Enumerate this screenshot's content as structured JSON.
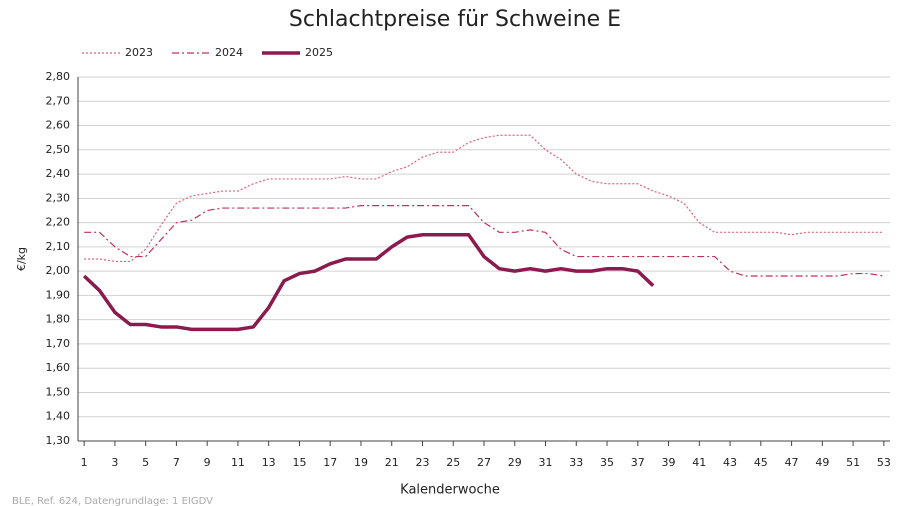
{
  "chart_data": {
    "type": "line",
    "title": "Schlachtpreise für Schweine E",
    "y_label": "€/kg",
    "x_label": "Kalenderwoche",
    "source": "BLE, Ref. 624, Datengrundlage: 1 EIGDV",
    "x": [
      1,
      2,
      3,
      4,
      5,
      6,
      7,
      8,
      9,
      10,
      11,
      12,
      13,
      14,
      15,
      16,
      17,
      18,
      19,
      20,
      21,
      22,
      23,
      24,
      25,
      26,
      27,
      28,
      29,
      30,
      31,
      32,
      33,
      34,
      35,
      36,
      37,
      38,
      39,
      40,
      41,
      42,
      43,
      44,
      45,
      46,
      47,
      48,
      49,
      50,
      51,
      52,
      53
    ],
    "series": [
      {
        "name": "2023",
        "color": "#e0607a",
        "dash": "dotted",
        "width": 1.2,
        "values": [
          2.05,
          2.05,
          2.04,
          2.04,
          2.09,
          2.19,
          2.28,
          2.31,
          2.32,
          2.33,
          2.33,
          2.36,
          2.38,
          2.38,
          2.38,
          2.38,
          2.38,
          2.39,
          2.38,
          2.38,
          2.41,
          2.43,
          2.47,
          2.49,
          2.49,
          2.53,
          2.55,
          2.56,
          2.56,
          2.56,
          2.5,
          2.46,
          2.4,
          2.37,
          2.36,
          2.36,
          2.36,
          2.33,
          2.31,
          2.28,
          2.2,
          2.16,
          2.16,
          2.16,
          2.16,
          2.16,
          2.15,
          2.16,
          2.16,
          2.16,
          2.16,
          2.16,
          2.16
        ]
      },
      {
        "name": "2024",
        "color": "#c0325a",
        "dash": "dashdot",
        "width": 1.2,
        "values": [
          2.16,
          2.16,
          2.1,
          2.06,
          2.06,
          2.13,
          2.2,
          2.21,
          2.25,
          2.26,
          2.26,
          2.26,
          2.26,
          2.26,
          2.26,
          2.26,
          2.26,
          2.26,
          2.27,
          2.27,
          2.27,
          2.27,
          2.27,
          2.27,
          2.27,
          2.27,
          2.2,
          2.16,
          2.16,
          2.17,
          2.16,
          2.09,
          2.06,
          2.06,
          2.06,
          2.06,
          2.06,
          2.06,
          2.06,
          2.06,
          2.06,
          2.06,
          2.0,
          1.98,
          1.98,
          1.98,
          1.98,
          1.98,
          1.98,
          1.98,
          1.99,
          1.99,
          1.98
        ]
      },
      {
        "name": "2025",
        "color": "#8b1a4f",
        "dash": "solid",
        "width": 3.5,
        "values": [
          1.98,
          1.92,
          1.83,
          1.78,
          1.78,
          1.77,
          1.77,
          1.76,
          1.76,
          1.76,
          1.76,
          1.77,
          1.85,
          1.96,
          1.99,
          2.0,
          2.03,
          2.05,
          2.05,
          2.05,
          2.1,
          2.14,
          2.15,
          2.15,
          2.15,
          2.15,
          2.06,
          2.01,
          2.0,
          2.01,
          2.0,
          2.01,
          2.0,
          2.0,
          2.01,
          2.01,
          2.0,
          1.94,
          null,
          null,
          null,
          null,
          null,
          null,
          null,
          null,
          null,
          null,
          null,
          null,
          null,
          null,
          null
        ]
      }
    ],
    "xlim": [
      0.6,
      53.4
    ],
    "xticks": [
      1,
      3,
      5,
      7,
      9,
      11,
      13,
      15,
      17,
      19,
      21,
      23,
      25,
      27,
      29,
      31,
      33,
      35,
      37,
      39,
      41,
      43,
      45,
      47,
      49,
      51,
      53
    ],
    "ylim": [
      1.3,
      2.8
    ],
    "yticks": [
      {
        "value": 1.3,
        "label": "1,30"
      },
      {
        "value": 1.4,
        "label": "1,40"
      },
      {
        "value": 1.5,
        "label": "1,50"
      },
      {
        "value": 1.6,
        "label": "1,60"
      },
      {
        "value": 1.7,
        "label": "1,70"
      },
      {
        "value": 1.8,
        "label": "1,80"
      },
      {
        "value": 1.9,
        "label": "1,90"
      },
      {
        "value": 2.0,
        "label": "2,00"
      },
      {
        "value": 2.1,
        "label": "2,10"
      },
      {
        "value": 2.2,
        "label": "2,20"
      },
      {
        "value": 2.3,
        "label": "2,30"
      },
      {
        "value": 2.4,
        "label": "2,40"
      },
      {
        "value": 2.5,
        "label": "2,50"
      },
      {
        "value": 2.6,
        "label": "2,60"
      },
      {
        "value": 2.7,
        "label": "2,70"
      },
      {
        "value": 2.8,
        "label": "2,80"
      }
    ],
    "grid": true,
    "legend": "top-left"
  }
}
